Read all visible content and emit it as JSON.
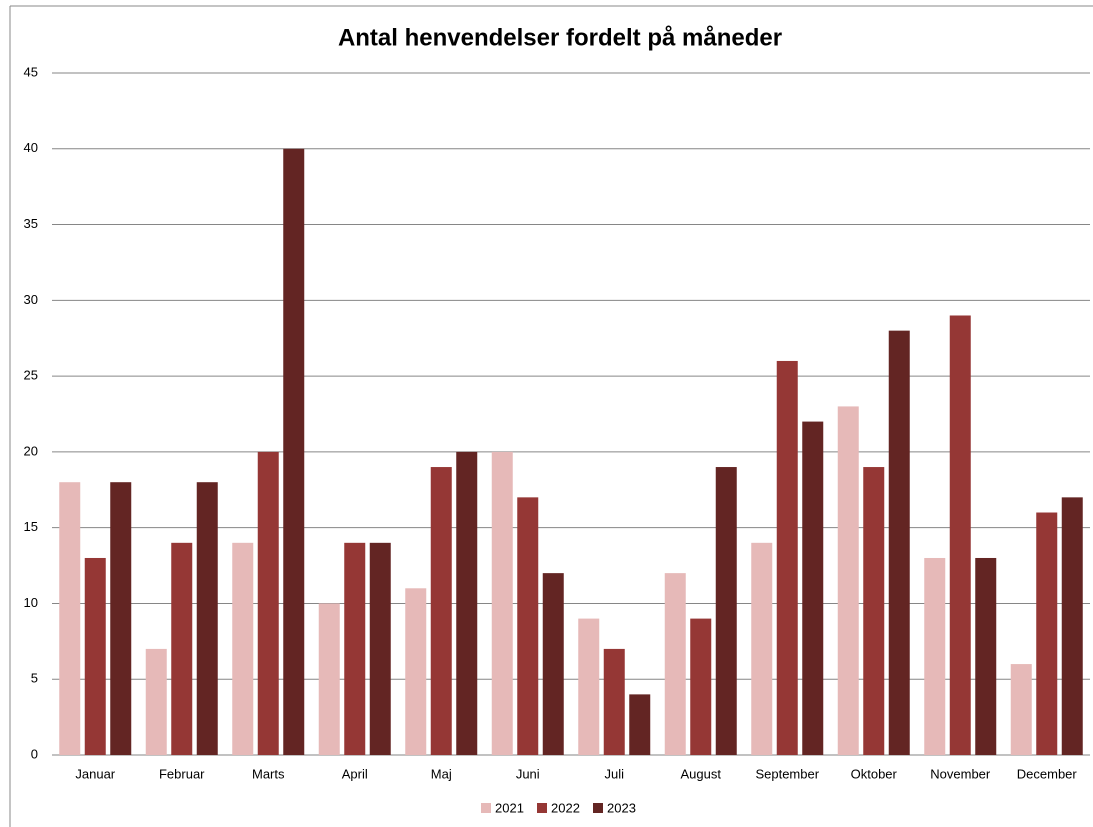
{
  "chart_data": {
    "type": "bar",
    "title": "Antal henvendelser fordelt på måneder",
    "categories": [
      "Januar",
      "Februar",
      "Marts",
      "April",
      "Maj",
      "Juni",
      "Juli",
      "August",
      "September",
      "Oktober",
      "November",
      "December"
    ],
    "series": [
      {
        "name": "2021",
        "color": "#e6b9b8",
        "values": [
          18,
          7,
          14,
          10,
          11,
          20,
          9,
          12,
          14,
          23,
          13,
          6
        ]
      },
      {
        "name": "2022",
        "color": "#953735",
        "values": [
          13,
          14,
          20,
          14,
          19,
          17,
          7,
          9,
          26,
          19,
          29,
          16
        ]
      },
      {
        "name": "2023",
        "color": "#632523",
        "values": [
          18,
          18,
          40,
          14,
          20,
          12,
          4,
          19,
          22,
          28,
          13,
          17
        ]
      }
    ],
    "ylim": [
      0,
      45
    ],
    "yticks": [
      0,
      5,
      10,
      15,
      20,
      25,
      30,
      35,
      40,
      45
    ],
    "grid": true,
    "legend": "bottom"
  }
}
